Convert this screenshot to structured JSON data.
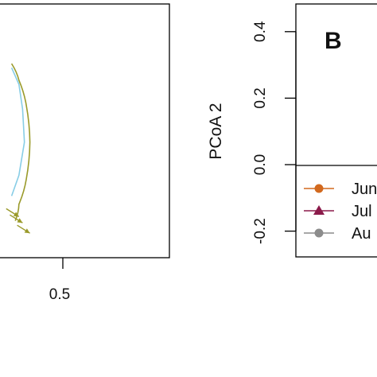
{
  "chart_data": [
    {
      "type": "scatter",
      "panel": "A",
      "title": "",
      "xlabel": "",
      "ylabel": "",
      "x_ticks": [
        {
          "value": 0.5,
          "label": "0.5"
        }
      ],
      "hull_color": "#87cde6",
      "ellipse_color": "#9a9a2a",
      "arrow_color": "#9a9a2a",
      "ellipse_points": [
        {
          "x": 0.36,
          "y": 0.25
        },
        {
          "x": 0.38,
          "y": 0.21
        },
        {
          "x": 0.4,
          "y": 0.15
        },
        {
          "x": 0.41,
          "y": 0.06
        },
        {
          "x": 0.4,
          "y": -0.03
        },
        {
          "x": 0.38,
          "y": -0.09
        },
        {
          "x": 0.37,
          "y": -0.13
        }
      ],
      "hull_points": [
        {
          "x": 0.36,
          "y": 0.24
        },
        {
          "x": 0.38,
          "y": 0.2
        },
        {
          "x": 0.39,
          "y": 0.14
        },
        {
          "x": 0.395,
          "y": 0.06
        },
        {
          "x": 0.38,
          "y": -0.02
        },
        {
          "x": 0.36,
          "y": -0.07
        }
      ],
      "arrow_tips": [
        {
          "x": 0.38,
          "y": -0.12
        },
        {
          "x": 0.39,
          "y": -0.135
        },
        {
          "x": 0.41,
          "y": -0.16
        }
      ]
    },
    {
      "type": "scatter",
      "panel": "B",
      "panel_label": "B",
      "title": "",
      "xlabel": "",
      "ylabel": "PCoA 2",
      "y_ticks": [
        {
          "value": 0.4,
          "label": "0.4"
        },
        {
          "value": 0.2,
          "label": "0.2"
        },
        {
          "value": 0.0,
          "label": "0.0"
        },
        {
          "value": -0.2,
          "label": "-0.2"
        }
      ],
      "ylim": [
        -0.3,
        0.48
      ],
      "zero_line": 0.0,
      "legend": {
        "placement": "bottom-left",
        "entries": [
          {
            "label": "Jun",
            "marker": "circle",
            "color": "#d2691e"
          },
          {
            "label": "Jul",
            "marker": "triangle",
            "color": "#8b1a4a"
          },
          {
            "label": "Au",
            "marker": "circle",
            "color": "#8c8c8c"
          }
        ]
      }
    }
  ]
}
